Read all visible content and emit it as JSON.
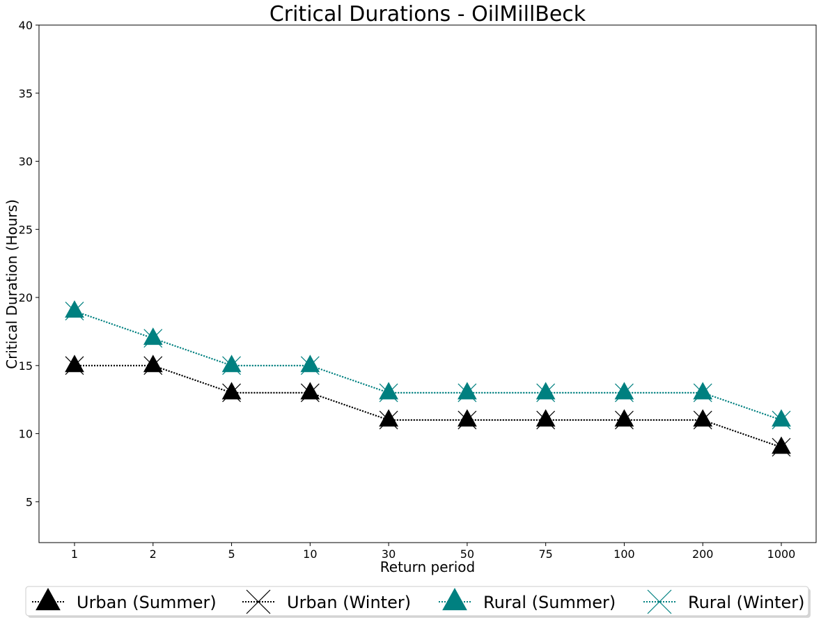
{
  "chart_data": {
    "type": "line",
    "title": "Critical Durations - OilMillBeck",
    "xlabel": "Return period",
    "ylabel": "Critical Duration (Hours)",
    "categories": [
      "1",
      "2",
      "5",
      "10",
      "30",
      "50",
      "75",
      "100",
      "200",
      "1000"
    ],
    "ylim": [
      2,
      40
    ],
    "yticks": [
      5,
      10,
      15,
      20,
      25,
      30,
      35,
      40
    ],
    "grid": false,
    "legend_position": "bottom-center",
    "series": [
      {
        "name": "Urban (Summer)",
        "values": [
          15,
          15,
          13,
          13,
          11,
          11,
          11,
          11,
          11,
          9
        ],
        "color": "#000000",
        "marker": "triangle",
        "linestyle": "dotted"
      },
      {
        "name": "Urban (Winter)",
        "values": [
          15,
          15,
          13,
          13,
          11,
          11,
          11,
          11,
          11,
          9
        ],
        "color": "#000000",
        "marker": "x",
        "linestyle": "dotted"
      },
      {
        "name": "Rural (Summer)",
        "values": [
          19,
          17,
          15,
          15,
          13,
          13,
          13,
          13,
          13,
          11
        ],
        "color": "#008080",
        "marker": "triangle",
        "linestyle": "dotted"
      },
      {
        "name": "Rural (Winter)",
        "values": [
          19,
          17,
          15,
          15,
          13,
          13,
          13,
          13,
          13,
          11
        ],
        "color": "#008080",
        "marker": "x",
        "linestyle": "dotted"
      }
    ]
  }
}
